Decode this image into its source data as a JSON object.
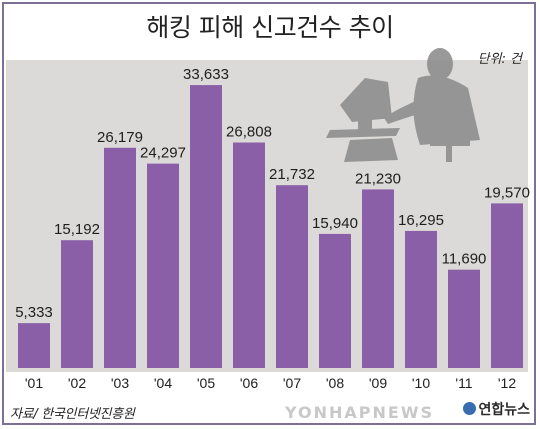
{
  "title": "해킹 피해 신고건수 추이",
  "unit_label": "단위: 건",
  "source": "자료/ 한국인터넷진흥원",
  "logo_text": "연합뉴스",
  "watermark_text": "YONHAPNEWS",
  "colors": {
    "bar": "#8a5fa8",
    "background": "#dcdad8",
    "frame": "#7d6f95",
    "silhouette": "#8e8e8e"
  },
  "chart_data": {
    "type": "bar",
    "categories": [
      "'01",
      "'02",
      "'03",
      "'04",
      "'05",
      "'06",
      "'07",
      "'08",
      "'09",
      "'10",
      "'11",
      "'12"
    ],
    "values": [
      5333,
      15192,
      26179,
      24297,
      33633,
      26808,
      21732,
      15940,
      21230,
      16295,
      11690,
      19570
    ],
    "value_labels": [
      "5,333",
      "15,192",
      "26,179",
      "24,297",
      "33,633",
      "26,808",
      "21,732",
      "15,940",
      "21,230",
      "16,295",
      "11,690",
      "19,570"
    ],
    "ylim": [
      0,
      34000
    ],
    "grid": false,
    "legend": "none"
  }
}
